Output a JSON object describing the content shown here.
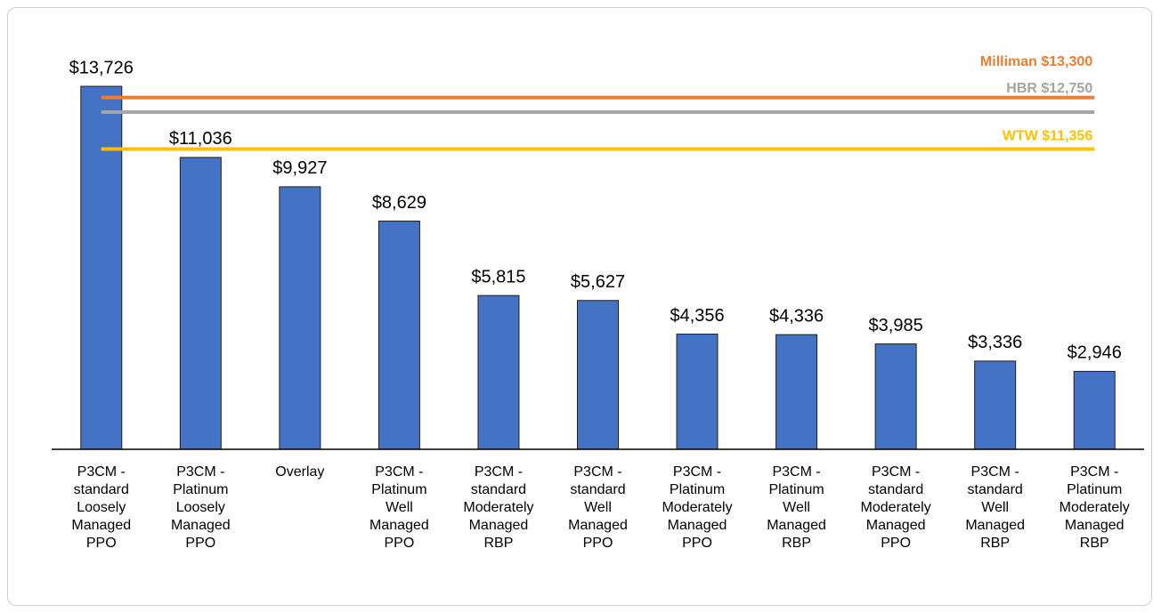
{
  "chart_data": {
    "type": "bar",
    "categories": [
      "P3CM - standard Loosely Managed PPO",
      "P3CM - Platinum Loosely Managed PPO",
      "Overlay",
      "P3CM - Platinum Well Managed PPO",
      "P3CM - standard Moderately Managed RBP",
      "P3CM - standard Well Managed PPO",
      "P3CM - Platinum Moderately Managed PPO",
      "P3CM - Platinum Well Managed RBP",
      "P3CM - standard Moderately Managed PPO",
      "P3CM - standard Well Managed RBP",
      "P3CM - Platinum Moderately Managed RBP"
    ],
    "values": [
      13726,
      11036,
      9927,
      8629,
      5815,
      5627,
      4356,
      4336,
      3985,
      3336,
      2946
    ],
    "value_labels": [
      "$13,726",
      "$11,036",
      "$9,927",
      "$8,629",
      "$5,815",
      "$5,627",
      "$4,356",
      "$4,336",
      "$3,985",
      "$3,336",
      "$2,946"
    ],
    "color": "#4472c4",
    "reference_lines": [
      {
        "label": "Milliman $13,300",
        "value": 13300,
        "color": "#ed7d31"
      },
      {
        "label": "HBR $12,750",
        "value": 12750,
        "color": "#a5a5a5"
      },
      {
        "label": "WTW $11,356",
        "value": 11356,
        "color": "#ffc000"
      }
    ]
  }
}
